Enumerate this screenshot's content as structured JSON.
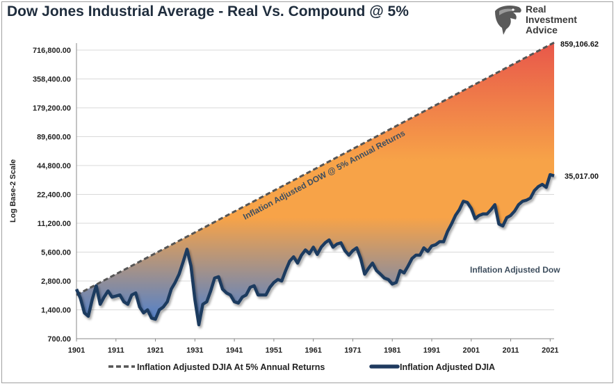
{
  "chart_data": {
    "type": "area",
    "title": "Dow Jones Industrial Average - Real Vs. Compound @ 5%",
    "ylabel": "Log Base-2 Scale",
    "yscale": "log2",
    "ylim": [
      700,
      859106.62
    ],
    "xlim": [
      1901,
      2022
    ],
    "y_ticks": [
      700,
      1400,
      2800,
      5600,
      11200,
      22400,
      44800,
      89600,
      179200,
      358400,
      716800
    ],
    "y_tick_labels": [
      "700.00",
      "1,400.00",
      "2,800.00",
      "5,600.00",
      "11,200.00",
      "22,400.00",
      "44,800.00",
      "89,600.00",
      "179,200.00",
      "358,400.00",
      "716,800.00"
    ],
    "x_ticks": [
      1901,
      1911,
      1921,
      1931,
      1941,
      1951,
      1961,
      1971,
      1981,
      1991,
      2001,
      2011,
      2021
    ],
    "grid": true,
    "legend_position": "bottom",
    "annotations": {
      "compound_line": "Inflation Adjusted DOW @ 5% Annual Returns",
      "real_line": "Inflation Adjusted Dow"
    },
    "end_labels": {
      "compound": "859,106.62",
      "real": "35,017.00"
    },
    "series": [
      {
        "name": "Inflation Adjusted DJIA At 5% Annual Returns",
        "style": "dashed",
        "color": "#555555",
        "start": [
          1901,
          2000
        ],
        "end": [
          2022,
          859106.62
        ]
      },
      {
        "name": "Inflation Adjusted DJIA",
        "style": "solid",
        "color": "#1f3a5f",
        "points": [
          [
            1901,
            2300
          ],
          [
            1902,
            1850
          ],
          [
            1903,
            1300
          ],
          [
            1904,
            1200
          ],
          [
            1905,
            1800
          ],
          [
            1906,
            2500
          ],
          [
            1907,
            1600
          ],
          [
            1908,
            1900
          ],
          [
            1909,
            2200
          ],
          [
            1910,
            1900
          ],
          [
            1911,
            1950
          ],
          [
            1912,
            2000
          ],
          [
            1913,
            1700
          ],
          [
            1914,
            1600
          ],
          [
            1915,
            2000
          ],
          [
            1916,
            2100
          ],
          [
            1917,
            1500
          ],
          [
            1918,
            1300
          ],
          [
            1919,
            1400
          ],
          [
            1920,
            1150
          ],
          [
            1921,
            1120
          ],
          [
            1922,
            1400
          ],
          [
            1923,
            1500
          ],
          [
            1924,
            1700
          ],
          [
            1925,
            2300
          ],
          [
            1926,
            2700
          ],
          [
            1927,
            3300
          ],
          [
            1928,
            4400
          ],
          [
            1929,
            6000
          ],
          [
            1930,
            4000
          ],
          [
            1931,
            1800
          ],
          [
            1932,
            980
          ],
          [
            1933,
            1600
          ],
          [
            1934,
            1700
          ],
          [
            1935,
            2200
          ],
          [
            1936,
            3000
          ],
          [
            1937,
            3100
          ],
          [
            1938,
            2300
          ],
          [
            1939,
            2100
          ],
          [
            1940,
            2000
          ],
          [
            1941,
            1700
          ],
          [
            1942,
            1650
          ],
          [
            1943,
            1900
          ],
          [
            1944,
            2000
          ],
          [
            1945,
            2400
          ],
          [
            1946,
            2500
          ],
          [
            1947,
            2000
          ],
          [
            1948,
            2000
          ],
          [
            1949,
            2000
          ],
          [
            1950,
            2400
          ],
          [
            1951,
            2700
          ],
          [
            1952,
            2900
          ],
          [
            1953,
            2800
          ],
          [
            1954,
            3600
          ],
          [
            1955,
            4500
          ],
          [
            1956,
            5000
          ],
          [
            1957,
            4300
          ],
          [
            1958,
            5200
          ],
          [
            1959,
            5900
          ],
          [
            1960,
            5400
          ],
          [
            1961,
            6300
          ],
          [
            1962,
            5300
          ],
          [
            1963,
            6300
          ],
          [
            1964,
            7000
          ],
          [
            1965,
            7500
          ],
          [
            1966,
            6300
          ],
          [
            1967,
            6800
          ],
          [
            1968,
            7000
          ],
          [
            1969,
            5800
          ],
          [
            1970,
            5200
          ],
          [
            1971,
            5800
          ],
          [
            1972,
            6200
          ],
          [
            1973,
            4800
          ],
          [
            1974,
            3300
          ],
          [
            1975,
            3800
          ],
          [
            1976,
            4300
          ],
          [
            1977,
            3600
          ],
          [
            1978,
            3300
          ],
          [
            1979,
            3000
          ],
          [
            1980,
            2900
          ],
          [
            1981,
            2600
          ],
          [
            1982,
            2700
          ],
          [
            1983,
            3600
          ],
          [
            1984,
            3400
          ],
          [
            1985,
            4000
          ],
          [
            1986,
            4800
          ],
          [
            1987,
            5200
          ],
          [
            1988,
            5200
          ],
          [
            1989,
            6200
          ],
          [
            1990,
            5700
          ],
          [
            1991,
            6500
          ],
          [
            1992,
            6700
          ],
          [
            1993,
            7200
          ],
          [
            1994,
            7200
          ],
          [
            1995,
            9200
          ],
          [
            1996,
            11000
          ],
          [
            1997,
            13500
          ],
          [
            1998,
            15500
          ],
          [
            1999,
            19000
          ],
          [
            2000,
            18500
          ],
          [
            2001,
            16000
          ],
          [
            2002,
            12500
          ],
          [
            2003,
            13500
          ],
          [
            2004,
            14000
          ],
          [
            2005,
            14000
          ],
          [
            2006,
            15500
          ],
          [
            2007,
            17500
          ],
          [
            2008,
            11000
          ],
          [
            2009,
            10500
          ],
          [
            2010,
            12800
          ],
          [
            2011,
            13500
          ],
          [
            2012,
            15000
          ],
          [
            2013,
            17500
          ],
          [
            2014,
            19000
          ],
          [
            2015,
            19500
          ],
          [
            2016,
            20500
          ],
          [
            2017,
            24500
          ],
          [
            2018,
            27000
          ],
          [
            2019,
            28500
          ],
          [
            2020,
            26500
          ],
          [
            2021,
            36000
          ],
          [
            2022,
            35017
          ]
        ]
      }
    ]
  },
  "logo": {
    "line1": "Real",
    "line2": "Investment",
    "line3": "Advice",
    "icon": "eagle-head-icon"
  },
  "colors": {
    "top": "#e8574a",
    "middle": "#f7a348",
    "bottom": "#4a7fd0",
    "real_line": "#1f3a5f",
    "compound_line": "#555555"
  }
}
